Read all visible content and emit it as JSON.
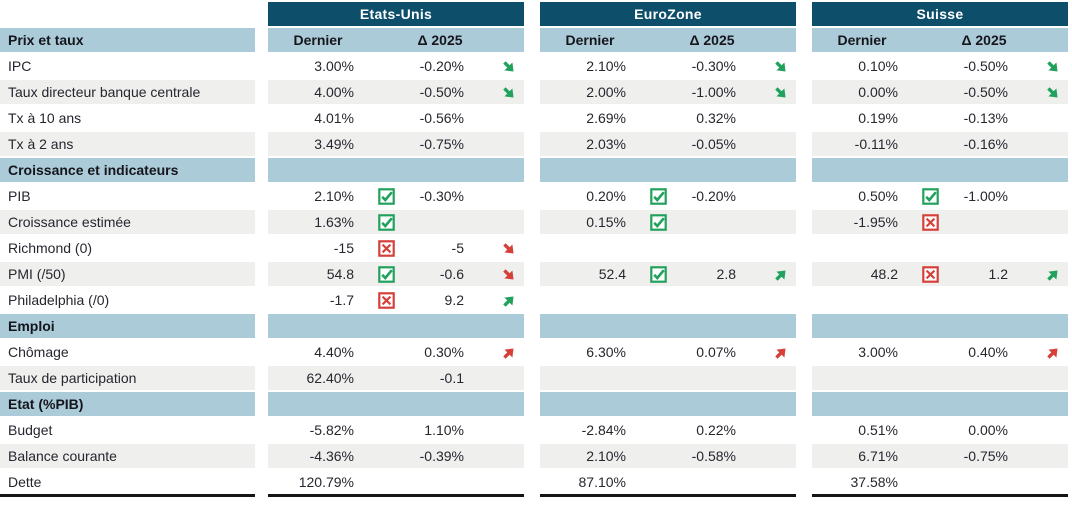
{
  "colors": {
    "teal": "#0d4e6b",
    "band": "#accbd9",
    "stripe": "#efefee",
    "green": "#22a15c",
    "red": "#d5413a",
    "text": "#26262e",
    "border": "#161616"
  },
  "table": {
    "groups": [
      {
        "id": "us",
        "title": "Etats-Unis"
      },
      {
        "id": "ez",
        "title": "EuroZone"
      },
      {
        "id": "ch",
        "title": "Suisse"
      }
    ],
    "columns": {
      "dernier": "Dernier",
      "delta": "Δ 2025"
    },
    "first_section": "Prix et taux",
    "rows": [
      {
        "type": "data",
        "label": "IPC",
        "cells": [
          {
            "dernier": "3.00%",
            "delta": "-0.20%",
            "arrow": "down-green"
          },
          {
            "dernier": "2.10%",
            "delta": "-0.30%",
            "arrow": "down-green"
          },
          {
            "dernier": "0.10%",
            "delta": "-0.50%",
            "arrow": "down-green"
          }
        ]
      },
      {
        "type": "data",
        "label": "Taux directeur banque centrale",
        "cells": [
          {
            "dernier": "4.00%",
            "delta": "-0.50%",
            "arrow": "down-green"
          },
          {
            "dernier": "2.00%",
            "delta": "-1.00%",
            "arrow": "down-green"
          },
          {
            "dernier": "0.00%",
            "delta": "-0.50%",
            "arrow": "down-green"
          }
        ]
      },
      {
        "type": "data",
        "label": "Tx à 10 ans",
        "cells": [
          {
            "dernier": "4.01%",
            "delta": "-0.56%"
          },
          {
            "dernier": "2.69%",
            "delta": "0.32%"
          },
          {
            "dernier": "0.19%",
            "delta": "-0.13%"
          }
        ]
      },
      {
        "type": "data",
        "label": "Tx à 2 ans",
        "cells": [
          {
            "dernier": "3.49%",
            "delta": "-0.75%"
          },
          {
            "dernier": "2.03%",
            "delta": "-0.05%"
          },
          {
            "dernier": "-0.11%",
            "delta": "-0.16%"
          }
        ]
      },
      {
        "type": "section",
        "label": "Croissance et indicateurs"
      },
      {
        "type": "data",
        "label": "PIB",
        "cells": [
          {
            "dernier": "2.10%",
            "icon": "check",
            "delta": "-0.30%"
          },
          {
            "dernier": "0.20%",
            "icon": "check",
            "delta": "-0.20%"
          },
          {
            "dernier": "0.50%",
            "icon": "check",
            "delta": "-1.00%"
          }
        ]
      },
      {
        "type": "data",
        "label": "Croissance estimée",
        "cells": [
          {
            "dernier": "1.63%",
            "icon": "check"
          },
          {
            "dernier": "0.15%",
            "icon": "check"
          },
          {
            "dernier": "-1.95%",
            "icon": "cross"
          }
        ]
      },
      {
        "type": "data",
        "label": "Richmond (0)",
        "cells": [
          {
            "dernier": "-15",
            "icon": "cross",
            "delta": "-5",
            "arrow": "down-red"
          },
          null,
          null
        ]
      },
      {
        "type": "data",
        "label": "PMI (/50)",
        "cells": [
          {
            "dernier": "54.8",
            "icon": "check",
            "delta": "-0.6",
            "arrow": "down-red"
          },
          {
            "dernier": "52.4",
            "icon": "check",
            "delta": "2.8",
            "arrow": "up-green"
          },
          {
            "dernier": "48.2",
            "icon": "cross",
            "delta": "1.2",
            "arrow": "up-green"
          }
        ]
      },
      {
        "type": "data",
        "label": "Philadelphia (/0)",
        "cells": [
          {
            "dernier": "-1.7",
            "icon": "cross",
            "delta": "9.2",
            "arrow": "up-green"
          },
          null,
          null
        ]
      },
      {
        "type": "section",
        "label": "Emploi"
      },
      {
        "type": "data",
        "label": "Chômage",
        "cells": [
          {
            "dernier": "4.40%",
            "delta": "0.30%",
            "arrow": "up-red"
          },
          {
            "dernier": "6.30%",
            "delta": "0.07%",
            "arrow": "up-red"
          },
          {
            "dernier": "3.00%",
            "delta": "0.40%",
            "arrow": "up-red"
          }
        ]
      },
      {
        "type": "data",
        "label": "Taux de participation",
        "cells": [
          {
            "dernier": "62.40%",
            "delta": "-0.1"
          },
          null,
          null
        ]
      },
      {
        "type": "section",
        "label": "Etat (%PIB)"
      },
      {
        "type": "data",
        "label": "Budget",
        "cells": [
          {
            "dernier": "-5.82%",
            "delta": "1.10%"
          },
          {
            "dernier": "-2.84%",
            "delta": "0.22%"
          },
          {
            "dernier": "0.51%",
            "delta": "0.00%"
          }
        ]
      },
      {
        "type": "data",
        "label": "Balance courante",
        "cells": [
          {
            "dernier": "-4.36%",
            "delta": "-0.39%"
          },
          {
            "dernier": "2.10%",
            "delta": "-0.58%"
          },
          {
            "dernier": "6.71%",
            "delta": "-0.75%"
          }
        ]
      },
      {
        "type": "data",
        "label": "Dette",
        "last": true,
        "cells": [
          {
            "dernier": "120.79%"
          },
          {
            "dernier": "87.10%"
          },
          {
            "dernier": "37.58%"
          }
        ]
      }
    ]
  }
}
